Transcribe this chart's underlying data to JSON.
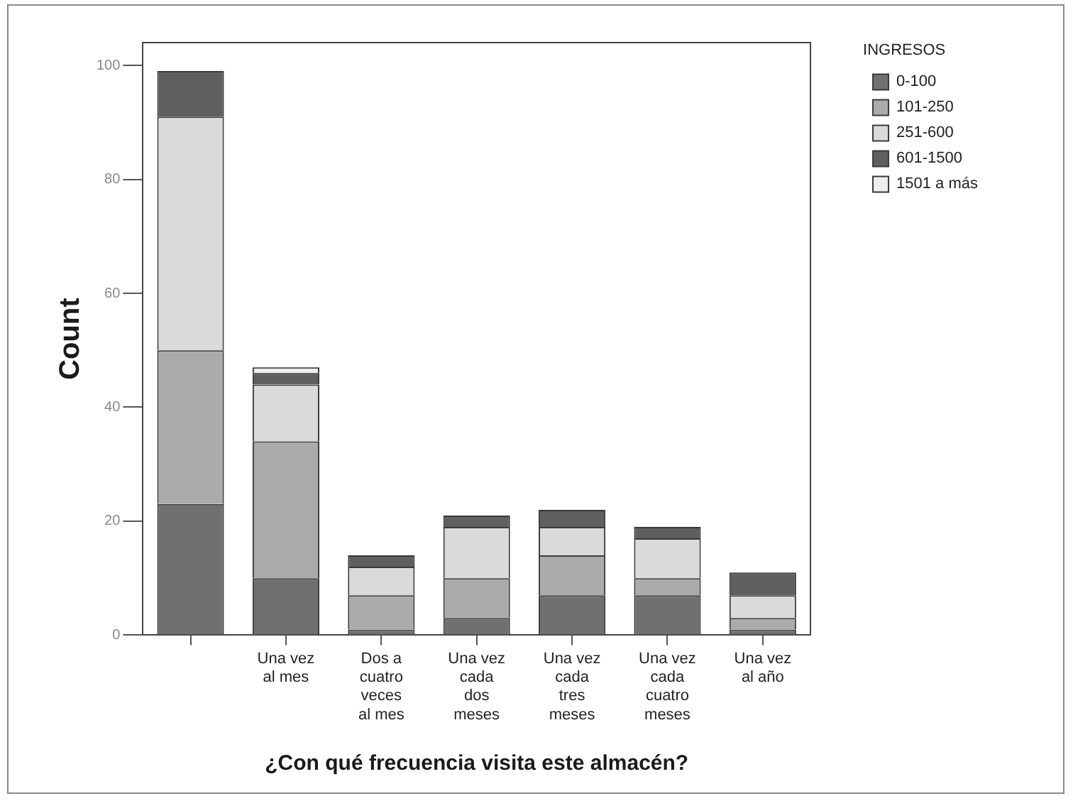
{
  "chart_data": {
    "type": "bar",
    "stacked": true,
    "xlabel": "¿Con qué frecuencia visita este almacén?",
    "ylabel": "Count",
    "legend_title": "INGRESOS",
    "legend": "top right",
    "grid": false,
    "categories": [
      null,
      "Una vez\nal mes",
      "Dos a\ncuatro\nveces\nal mes",
      "Una vez\ncada\ndos\nmeses",
      "Una vez\ncada\ntres\nmeses",
      "Una vez\ncada\ncuatro\nmeses",
      "Una vez\nal año"
    ],
    "ylim": [
      0,
      104
    ],
    "yticks": [
      0,
      20,
      40,
      60,
      80,
      100
    ],
    "series": [
      {
        "name": "0-100",
        "color": "#707070",
        "values": [
          23,
          10,
          1,
          3,
          7,
          7,
          1
        ]
      },
      {
        "name": "101-250",
        "color": "#ababab",
        "values": [
          27,
          24,
          6,
          7,
          7,
          3,
          2
        ]
      },
      {
        "name": "251-600",
        "color": "#dadada",
        "values": [
          41,
          10,
          5,
          9,
          5,
          7,
          4
        ]
      },
      {
        "name": "601-1500",
        "color": "#5f5f5f",
        "values": [
          8,
          2,
          2,
          2,
          3,
          2,
          4
        ]
      },
      {
        "name": "1501 a más",
        "color": "#eeeeee",
        "values": [
          0,
          1,
          0,
          0,
          0,
          0,
          0
        ]
      }
    ]
  }
}
